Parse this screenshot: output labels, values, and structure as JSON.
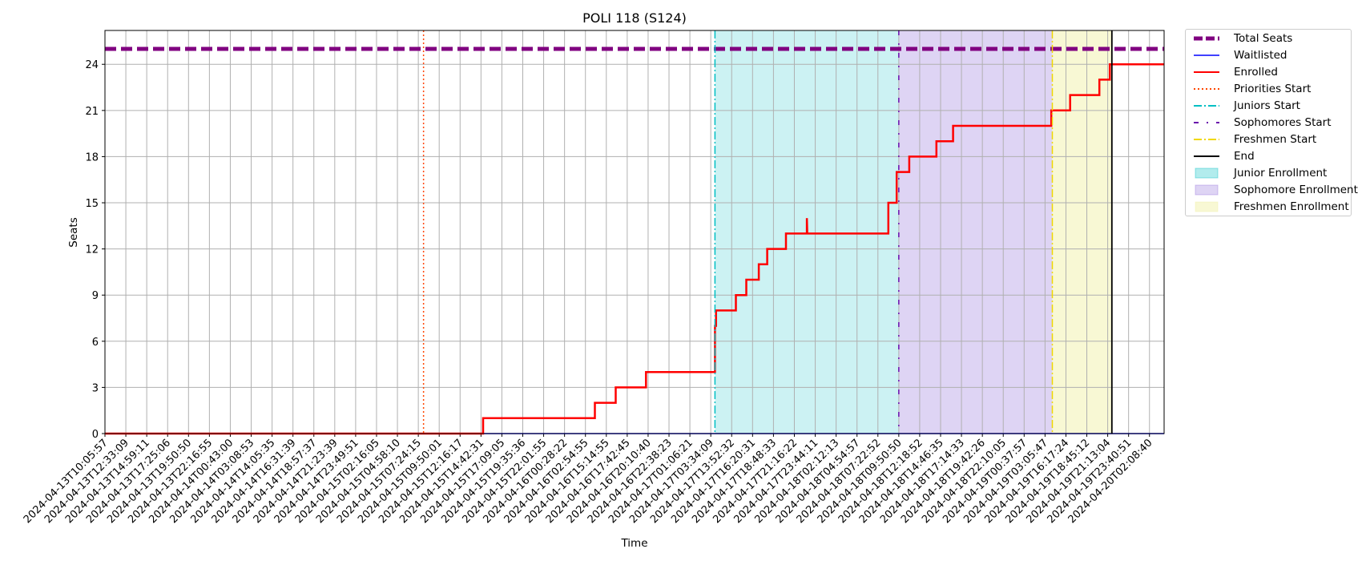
{
  "chart_data": {
    "type": "line",
    "title": "POLI 118 (S124)",
    "xlabel": "Time",
    "ylabel": "Seats",
    "ylim": [
      0,
      26.2
    ],
    "yticks": [
      0,
      3,
      6,
      9,
      12,
      15,
      18,
      21,
      24
    ],
    "grid": true,
    "legend_position": "outside-top-right",
    "x_tick_labels": [
      "2024-04-13T10:05:57",
      "2024-04-13T12:33:09",
      "2024-04-13T14:59:11",
      "2024-04-13T17:25:06",
      "2024-04-13T19:50:50",
      "2024-04-13T22:16:55",
      "2024-04-14T00:43:00",
      "2024-04-14T03:08:53",
      "2024-04-14T14:05:35",
      "2024-04-14T16:31:39",
      "2024-04-14T18:57:37",
      "2024-04-14T21:23:39",
      "2024-04-14T23:49:51",
      "2024-04-15T02:16:05",
      "2024-04-15T04:58:10",
      "2024-04-15T07:24:15",
      "2024-04-15T09:50:01",
      "2024-04-15T12:16:17",
      "2024-04-15T14:42:31",
      "2024-04-15T17:09:05",
      "2024-04-15T19:35:36",
      "2024-04-15T22:01:55",
      "2024-04-16T00:28:22",
      "2024-04-16T02:54:55",
      "2024-04-16T15:14:55",
      "2024-04-16T17:42:45",
      "2024-04-16T20:10:40",
      "2024-04-16T22:38:23",
      "2024-04-17T01:06:21",
      "2024-04-17T03:34:09",
      "2024-04-17T13:52:32",
      "2024-04-17T16:20:31",
      "2024-04-17T18:48:33",
      "2024-04-17T21:16:22",
      "2024-04-17T23:44:11",
      "2024-04-18T02:12:13",
      "2024-04-18T04:54:57",
      "2024-04-18T07:22:52",
      "2024-04-18T09:50:50",
      "2024-04-18T12:18:52",
      "2024-04-18T14:46:35",
      "2024-04-18T17:14:33",
      "2024-04-18T19:42:26",
      "2024-04-18T22:10:05",
      "2024-04-19T00:37:57",
      "2024-04-19T03:05:47",
      "2024-04-19T16:17:24",
      "2024-04-19T18:45:12",
      "2024-04-19T21:13:04",
      "2024-04-19T23:40:51",
      "2024-04-20T02:08:40"
    ],
    "x_range_index": [
      0,
      50.7
    ],
    "total_seats": 25,
    "series": [
      {
        "name": "Total Seats",
        "color": "#800080",
        "style": "dashed-thick",
        "points": [
          [
            0,
            25
          ],
          [
            50.7,
            25
          ]
        ]
      },
      {
        "name": "Waitlisted",
        "color": "#0000ff",
        "style": "solid-thin",
        "points": [
          [
            0,
            0
          ],
          [
            50.7,
            0
          ]
        ]
      },
      {
        "name": "Enrolled",
        "color": "#ff0000",
        "style": "solid-step",
        "points": [
          [
            0,
            0
          ],
          [
            18.1,
            0
          ],
          [
            18.1,
            1
          ],
          [
            23.45,
            1
          ],
          [
            23.45,
            2
          ],
          [
            24.45,
            2
          ],
          [
            24.45,
            3
          ],
          [
            25.9,
            3
          ],
          [
            25.9,
            4
          ],
          [
            29.2,
            4
          ],
          [
            29.2,
            7
          ],
          [
            29.25,
            7
          ],
          [
            29.25,
            8
          ],
          [
            30.2,
            8
          ],
          [
            30.2,
            9
          ],
          [
            30.7,
            9
          ],
          [
            30.7,
            10
          ],
          [
            31.3,
            10
          ],
          [
            31.3,
            11
          ],
          [
            31.7,
            11
          ],
          [
            31.7,
            12
          ],
          [
            32.6,
            12
          ],
          [
            32.6,
            13
          ],
          [
            33.6,
            13
          ],
          [
            33.6,
            14
          ],
          [
            33.62,
            13
          ],
          [
            37.5,
            13
          ],
          [
            37.5,
            15
          ],
          [
            37.9,
            15
          ],
          [
            37.9,
            17
          ],
          [
            38.5,
            17
          ],
          [
            38.5,
            18
          ],
          [
            39.8,
            18
          ],
          [
            39.8,
            19
          ],
          [
            40.6,
            19
          ],
          [
            40.6,
            20
          ],
          [
            45.3,
            20
          ],
          [
            45.3,
            21
          ],
          [
            46.2,
            21
          ],
          [
            46.2,
            22
          ],
          [
            47.6,
            22
          ],
          [
            47.6,
            23
          ],
          [
            48.1,
            23
          ],
          [
            48.1,
            24
          ],
          [
            50.7,
            24
          ]
        ]
      }
    ],
    "markers": [
      {
        "name": "Priorities Start",
        "color": "#ff4500",
        "style": "dotted",
        "x": 15.25
      },
      {
        "name": "Juniors Start",
        "color": "#00bfc4",
        "style": "dashdot",
        "x": 29.2
      },
      {
        "name": "Sophomores Start",
        "color": "#6a0dad",
        "style": "dashdot-sparse",
        "x": 38.0
      },
      {
        "name": "Freshmen Start",
        "color": "#f0d800",
        "style": "dashdot",
        "x": 45.35
      },
      {
        "name": "End",
        "color": "#000000",
        "style": "solid",
        "x": 48.2
      }
    ],
    "regions": [
      {
        "name": "Junior Enrollment",
        "color": "#00bfc4",
        "alpha": 0.2,
        "x_start": 29.2,
        "x_end": 38.0
      },
      {
        "name": "Sophomore Enrollment",
        "color": "#9370db",
        "alpha": 0.3,
        "x_start": 38.0,
        "x_end": 45.35
      },
      {
        "name": "Freshmen Enrollment",
        "color": "#f0f0a0",
        "alpha": 0.45,
        "x_start": 45.35,
        "x_end": 48.2
      }
    ]
  },
  "legend": {
    "items": [
      {
        "key": "total",
        "label": "Total Seats",
        "color": "#800080",
        "style": "dashed-thick"
      },
      {
        "key": "waitlisted",
        "label": "Waitlisted",
        "color": "#0000ff",
        "style": "solid-thin"
      },
      {
        "key": "enrolled",
        "label": "Enrolled",
        "color": "#ff0000",
        "style": "solid"
      },
      {
        "key": "priorities",
        "label": "Priorities Start",
        "color": "#ff4500",
        "style": "dotted"
      },
      {
        "key": "juniors",
        "label": "Juniors Start",
        "color": "#00bfc4",
        "style": "dashdot"
      },
      {
        "key": "sophomores",
        "label": "Sophomores Start",
        "color": "#6a0dad",
        "style": "dashdot-sparse"
      },
      {
        "key": "freshmen",
        "label": "Freshmen Start",
        "color": "#f0d800",
        "style": "dashdot"
      },
      {
        "key": "end",
        "label": "End",
        "color": "#000000",
        "style": "solid"
      },
      {
        "key": "junior-region",
        "label": "Junior Enrollment",
        "color": "#00bfc4",
        "style": "patch"
      },
      {
        "key": "sophomore-region",
        "label": "Sophomore Enrollment",
        "color": "#9370db",
        "style": "patch"
      },
      {
        "key": "freshmen-region",
        "label": "Freshmen Enrollment",
        "color": "#f0f0a0",
        "style": "patch"
      }
    ]
  }
}
